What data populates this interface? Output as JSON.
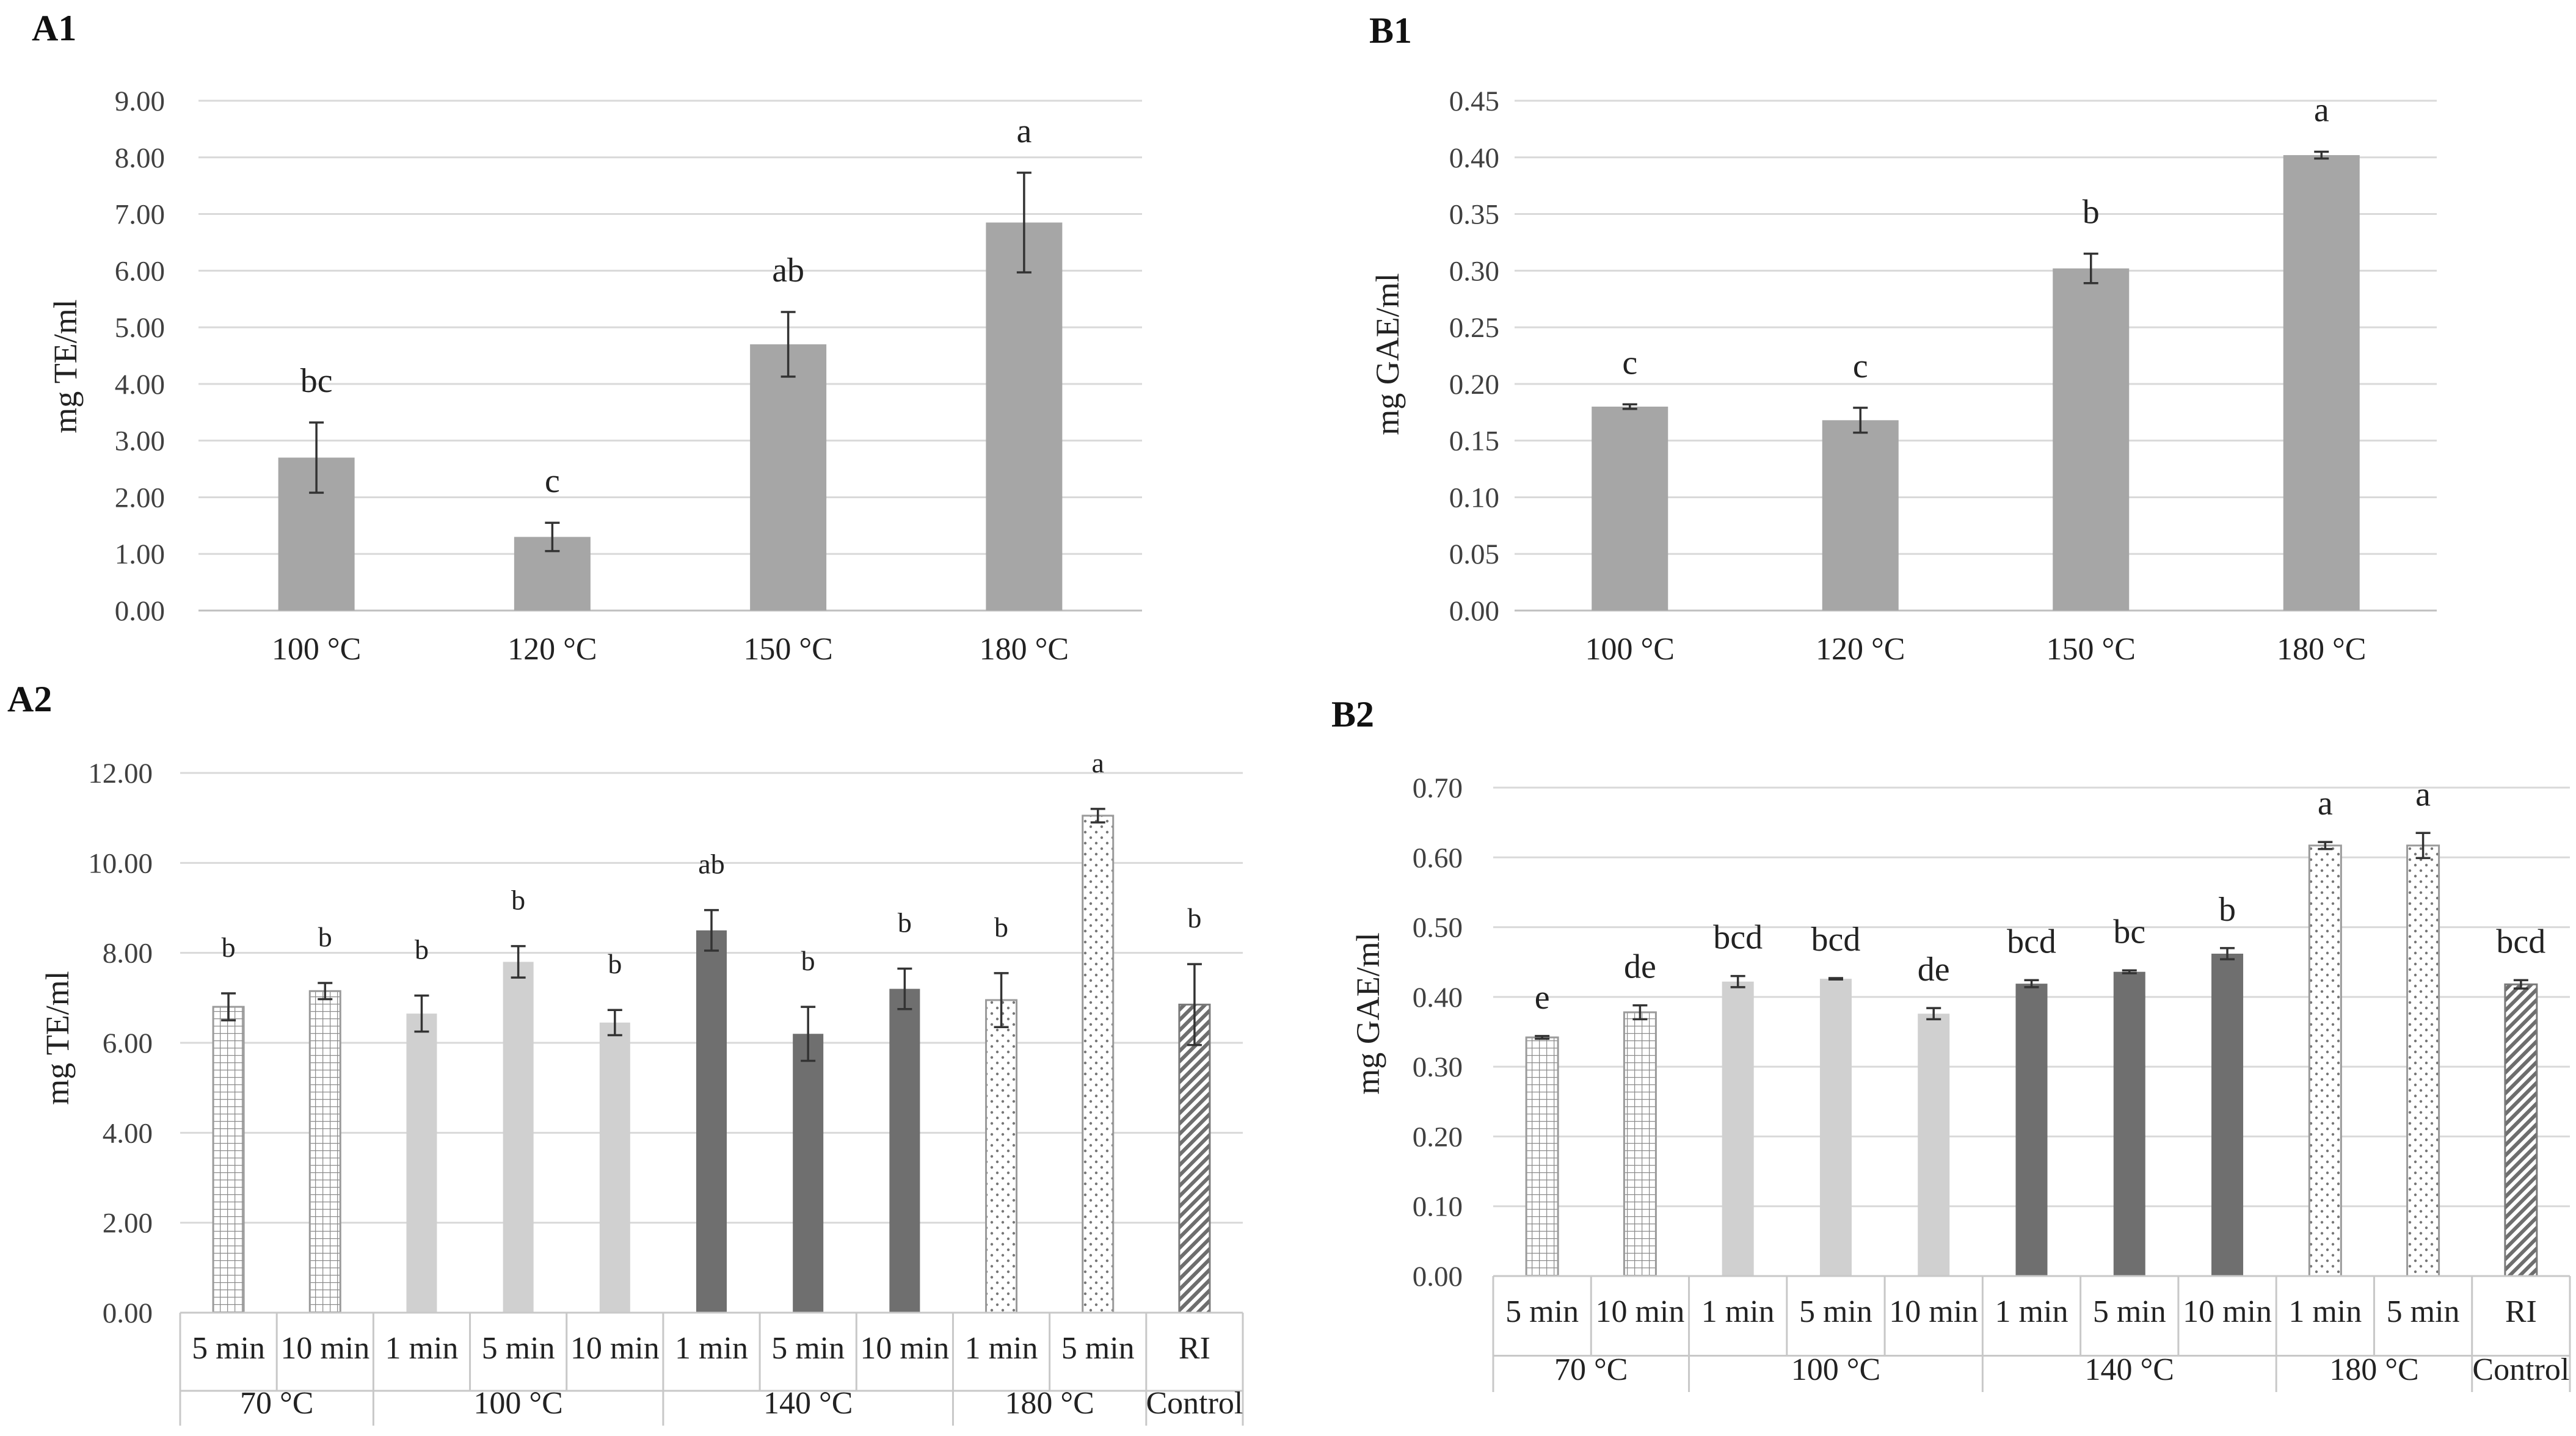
{
  "chart_data": [
    {
      "id": "A1",
      "type": "bar",
      "title": "A1",
      "ylabel": "mg TE/ml",
      "xlabel": "",
      "ylim": [
        0,
        9
      ],
      "ytick_step": 1,
      "ytick_decimals": 2,
      "categories": [
        "100 °C",
        "120 °C",
        "150 °C",
        "180 °C"
      ],
      "values": [
        2.7,
        1.3,
        4.7,
        6.85
      ],
      "errors": [
        0.62,
        0.25,
        0.57,
        0.88
      ],
      "significance": [
        "bc",
        "c",
        "ab",
        "a"
      ],
      "fill_style": [
        "gray",
        "gray",
        "gray",
        "gray"
      ]
    },
    {
      "id": "B1",
      "type": "bar",
      "title": "B1",
      "ylabel": "mg GAE/ml",
      "xlabel": "",
      "ylim": [
        0,
        0.45
      ],
      "ytick_step": 0.05,
      "ytick_decimals": 2,
      "categories": [
        "100 °C",
        "120 °C",
        "150 °C",
        "180 °C"
      ],
      "values": [
        0.18,
        0.168,
        0.302,
        0.402
      ],
      "errors": [
        0.002,
        0.011,
        0.013,
        0.003
      ],
      "significance": [
        "c",
        "c",
        "b",
        "a"
      ],
      "fill_style": [
        "gray",
        "gray",
        "gray",
        "gray"
      ]
    },
    {
      "id": "A2",
      "type": "bar",
      "title": "A2",
      "ylabel": "mg TE/ml",
      "xlabel": "",
      "ylim": [
        0,
        12
      ],
      "ytick_step": 2,
      "ytick_decimals": 2,
      "categories": [
        "5 min",
        "10 min",
        "1 min",
        "5 min",
        "10 min",
        "1 min",
        "5 min",
        "10 min",
        "1 min",
        "5 min",
        "RI"
      ],
      "groups": [
        {
          "label": "70 °C",
          "count": 2
        },
        {
          "label": "100 °C",
          "count": 3
        },
        {
          "label": "140 °C",
          "count": 3
        },
        {
          "label": "180 °C",
          "count": 2
        },
        {
          "label": "Control",
          "count": 1
        }
      ],
      "values": [
        6.8,
        7.15,
        6.65,
        7.8,
        6.45,
        8.5,
        6.2,
        7.2,
        6.95,
        11.05,
        6.85
      ],
      "errors": [
        0.3,
        0.18,
        0.4,
        0.35,
        0.28,
        0.45,
        0.6,
        0.45,
        0.6,
        0.15,
        0.9
      ],
      "significance": [
        "b",
        "b",
        "b",
        "b",
        "b",
        "ab",
        "b",
        "b",
        "b",
        "a",
        "b"
      ],
      "fill_style": [
        "grid",
        "grid",
        "light",
        "light",
        "light",
        "dark",
        "dark",
        "dark",
        "dots",
        "dots",
        "hatch"
      ]
    },
    {
      "id": "B2",
      "type": "bar",
      "title": "B2",
      "ylabel": "mg GAE/ml",
      "xlabel": "",
      "ylim": [
        0,
        0.7
      ],
      "ytick_step": 0.1,
      "ytick_decimals": 2,
      "categories": [
        "5 min",
        "10 min",
        "1 min",
        "5 min",
        "10 min",
        "1 min",
        "5 min",
        "10 min",
        "1 min",
        "5 min",
        "RI"
      ],
      "groups": [
        {
          "label": "70 °C",
          "count": 2
        },
        {
          "label": "100 °C",
          "count": 3
        },
        {
          "label": "140 °C",
          "count": 3
        },
        {
          "label": "180 °C",
          "count": 2
        },
        {
          "label": "Control",
          "count": 1
        }
      ],
      "values": [
        0.342,
        0.378,
        0.422,
        0.426,
        0.376,
        0.419,
        0.436,
        0.462,
        0.617,
        0.617,
        0.418
      ],
      "errors": [
        0.002,
        0.01,
        0.008,
        0.001,
        0.008,
        0.005,
        0.002,
        0.008,
        0.005,
        0.018,
        0.006
      ],
      "significance": [
        "e",
        "de",
        "bcd",
        "bcd",
        "de",
        "bcd",
        "bc",
        "b",
        "a",
        "a",
        "bcd"
      ],
      "fill_style": [
        "grid",
        "grid",
        "light",
        "light",
        "light",
        "dark",
        "dark",
        "dark",
        "dots",
        "dots",
        "hatch"
      ]
    }
  ]
}
